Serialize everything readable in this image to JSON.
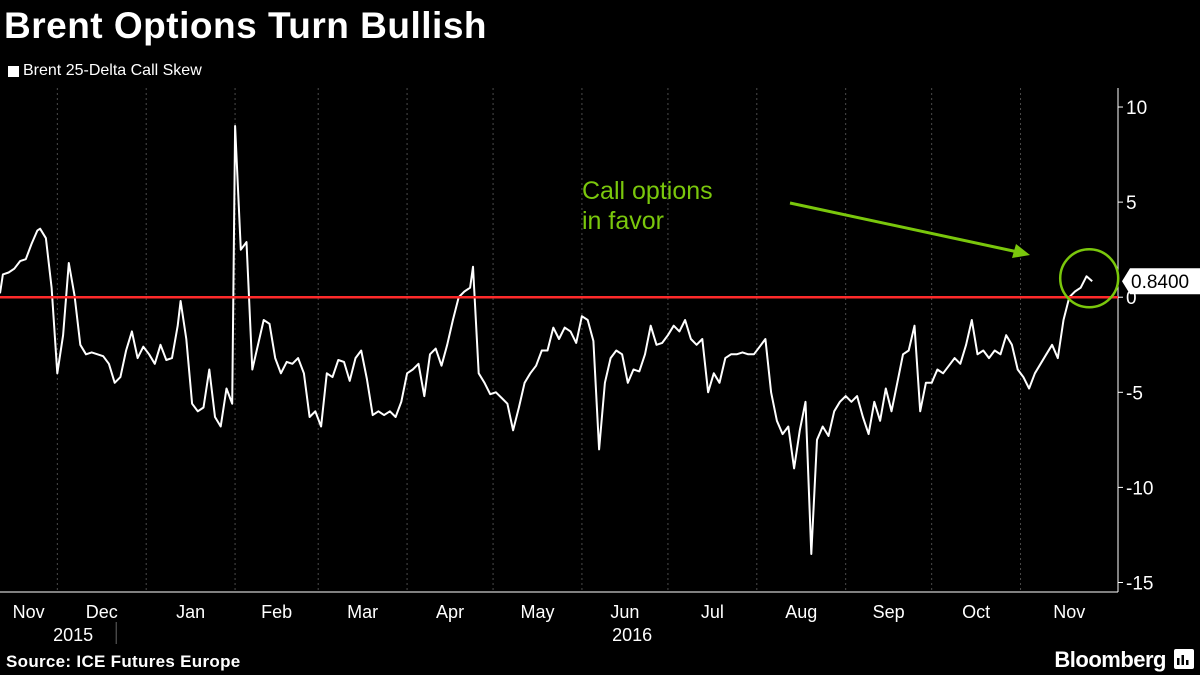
{
  "title": "Brent Options Turn Bullish",
  "legend": {
    "label": "Brent 25-Delta Call Skew"
  },
  "source": "Source: ICE Futures Europe",
  "brand": "Bloomberg",
  "annotation": {
    "line1": "Call options",
    "line2": "in favor"
  },
  "colors": {
    "background": "#000000",
    "series": "#ffffff",
    "zero_line": "#ff2a2a",
    "annotation": "#7ac70c",
    "grid": "#4a4a4a"
  },
  "chart_data": {
    "type": "line",
    "title": "Brent Options Turn Bullish",
    "xlabel": "",
    "ylabel": "",
    "ylim": [
      -15.5,
      11
    ],
    "yticks": [
      10,
      5,
      0,
      -5,
      -10,
      -15
    ],
    "ytick_labels": [
      "10",
      "5",
      "0",
      "-5",
      "-10",
      "-15"
    ],
    "last_value_label": "0.8400",
    "reference_line": 0,
    "x_range": [
      "2015-11-11",
      "2016-12-05"
    ],
    "months": [
      {
        "label": "Nov",
        "start": "2015-11-01",
        "year": "2015"
      },
      {
        "label": "Dec",
        "start": "2015-12-01",
        "year": "2015"
      },
      {
        "label": "Jan",
        "start": "2016-01-01",
        "year": "2016"
      },
      {
        "label": "Feb",
        "start": "2016-02-01",
        "year": "2016"
      },
      {
        "label": "Mar",
        "start": "2016-03-01",
        "year": "2016"
      },
      {
        "label": "Apr",
        "start": "2016-04-01",
        "year": "2016"
      },
      {
        "label": "May",
        "start": "2016-05-01",
        "year": "2016"
      },
      {
        "label": "Jun",
        "start": "2016-06-01",
        "year": "2016"
      },
      {
        "label": "Jul",
        "start": "2016-07-01",
        "year": "2016"
      },
      {
        "label": "Aug",
        "start": "2016-08-01",
        "year": "2016"
      },
      {
        "label": "Sep",
        "start": "2016-09-01",
        "year": "2016"
      },
      {
        "label": "Oct",
        "start": "2016-10-01",
        "year": "2016"
      },
      {
        "label": "Nov",
        "start": "2016-11-01",
        "year": "2016"
      }
    ],
    "month_labels": [
      "Nov",
      "Dec",
      "Jan",
      "Feb",
      "Mar",
      "Apr",
      "May",
      "Jun",
      "Jul",
      "Aug",
      "Sep",
      "Oct",
      "Nov"
    ],
    "year_labels": [
      "2015",
      "2016"
    ],
    "series": [
      {
        "name": "Brent 25-Delta Call Skew",
        "points": [
          [
            "2015-11-11",
            0.2
          ],
          [
            "2015-11-12",
            1.2
          ],
          [
            "2015-11-14",
            1.3
          ],
          [
            "2015-11-16",
            1.5
          ],
          [
            "2015-11-18",
            1.9
          ],
          [
            "2015-11-20",
            2.0
          ],
          [
            "2015-11-22",
            2.8
          ],
          [
            "2015-11-24",
            3.5
          ],
          [
            "2015-11-25",
            3.6
          ],
          [
            "2015-11-27",
            3.1
          ],
          [
            "2015-11-29",
            0.5
          ],
          [
            "2015-12-01",
            -4.0
          ],
          [
            "2015-12-03",
            -2.0
          ],
          [
            "2015-12-05",
            1.8
          ],
          [
            "2015-12-07",
            0.1
          ],
          [
            "2015-12-09",
            -2.5
          ],
          [
            "2015-12-11",
            -3.0
          ],
          [
            "2015-12-13",
            -2.9
          ],
          [
            "2015-12-15",
            -3.0
          ],
          [
            "2015-12-17",
            -3.1
          ],
          [
            "2015-12-19",
            -3.5
          ],
          [
            "2015-12-21",
            -4.5
          ],
          [
            "2015-12-23",
            -4.2
          ],
          [
            "2015-12-25",
            -2.8
          ],
          [
            "2015-12-27",
            -1.8
          ],
          [
            "2015-12-29",
            -3.2
          ],
          [
            "2015-12-31",
            -2.6
          ],
          [
            "2016-01-02",
            -3.0
          ],
          [
            "2016-01-04",
            -3.5
          ],
          [
            "2016-01-06",
            -2.5
          ],
          [
            "2016-01-08",
            -3.3
          ],
          [
            "2016-01-10",
            -3.2
          ],
          [
            "2016-01-12",
            -1.5
          ],
          [
            "2016-01-13",
            -0.2
          ],
          [
            "2016-01-15",
            -2.2
          ],
          [
            "2016-01-17",
            -5.6
          ],
          [
            "2016-01-19",
            -6.0
          ],
          [
            "2016-01-21",
            -5.8
          ],
          [
            "2016-01-23",
            -3.8
          ],
          [
            "2016-01-25",
            -6.3
          ],
          [
            "2016-01-27",
            -6.8
          ],
          [
            "2016-01-29",
            -4.8
          ],
          [
            "2016-01-31",
            -5.6
          ],
          [
            "2016-02-01",
            9.0
          ],
          [
            "2016-02-03",
            2.5
          ],
          [
            "2016-02-05",
            2.9
          ],
          [
            "2016-02-07",
            -3.8
          ],
          [
            "2016-02-09",
            -2.5
          ],
          [
            "2016-02-11",
            -1.2
          ],
          [
            "2016-02-13",
            -1.4
          ],
          [
            "2016-02-15",
            -3.2
          ],
          [
            "2016-02-17",
            -4.0
          ],
          [
            "2016-02-19",
            -3.4
          ],
          [
            "2016-02-21",
            -3.5
          ],
          [
            "2016-02-23",
            -3.2
          ],
          [
            "2016-02-25",
            -4.0
          ],
          [
            "2016-02-27",
            -6.3
          ],
          [
            "2016-02-29",
            -6.0
          ],
          [
            "2016-03-02",
            -6.8
          ],
          [
            "2016-03-04",
            -4.0
          ],
          [
            "2016-03-06",
            -4.2
          ],
          [
            "2016-03-08",
            -3.3
          ],
          [
            "2016-03-10",
            -3.4
          ],
          [
            "2016-03-12",
            -4.4
          ],
          [
            "2016-03-14",
            -3.2
          ],
          [
            "2016-03-16",
            -2.8
          ],
          [
            "2016-03-18",
            -4.3
          ],
          [
            "2016-03-20",
            -6.2
          ],
          [
            "2016-03-22",
            -6.0
          ],
          [
            "2016-03-24",
            -6.2
          ],
          [
            "2016-03-26",
            -6.0
          ],
          [
            "2016-03-28",
            -6.3
          ],
          [
            "2016-03-30",
            -5.5
          ],
          [
            "2016-04-01",
            -4.0
          ],
          [
            "2016-04-03",
            -3.8
          ],
          [
            "2016-04-05",
            -3.5
          ],
          [
            "2016-04-07",
            -5.2
          ],
          [
            "2016-04-09",
            -3.0
          ],
          [
            "2016-04-11",
            -2.7
          ],
          [
            "2016-04-13",
            -3.6
          ],
          [
            "2016-04-15",
            -2.5
          ],
          [
            "2016-04-17",
            -1.2
          ],
          [
            "2016-04-19",
            0.0
          ],
          [
            "2016-04-21",
            0.3
          ],
          [
            "2016-04-23",
            0.5
          ],
          [
            "2016-04-24",
            1.6
          ],
          [
            "2016-04-26",
            -4.0
          ],
          [
            "2016-04-28",
            -4.5
          ],
          [
            "2016-04-30",
            -5.1
          ],
          [
            "2016-05-02",
            -5.0
          ],
          [
            "2016-05-04",
            -5.3
          ],
          [
            "2016-05-06",
            -5.6
          ],
          [
            "2016-05-08",
            -7.0
          ],
          [
            "2016-05-10",
            -5.8
          ],
          [
            "2016-05-12",
            -4.5
          ],
          [
            "2016-05-14",
            -4.0
          ],
          [
            "2016-05-16",
            -3.6
          ],
          [
            "2016-05-18",
            -2.8
          ],
          [
            "2016-05-20",
            -2.8
          ],
          [
            "2016-05-22",
            -1.6
          ],
          [
            "2016-05-24",
            -2.2
          ],
          [
            "2016-05-26",
            -1.6
          ],
          [
            "2016-05-28",
            -1.8
          ],
          [
            "2016-05-30",
            -2.4
          ],
          [
            "2016-06-01",
            -1.0
          ],
          [
            "2016-06-03",
            -1.2
          ],
          [
            "2016-06-05",
            -2.3
          ],
          [
            "2016-06-07",
            -8.0
          ],
          [
            "2016-06-09",
            -4.5
          ],
          [
            "2016-06-11",
            -3.2
          ],
          [
            "2016-06-13",
            -2.8
          ],
          [
            "2016-06-15",
            -3.0
          ],
          [
            "2016-06-17",
            -4.5
          ],
          [
            "2016-06-19",
            -3.8
          ],
          [
            "2016-06-21",
            -3.9
          ],
          [
            "2016-06-23",
            -3.0
          ],
          [
            "2016-06-25",
            -1.5
          ],
          [
            "2016-06-27",
            -2.5
          ],
          [
            "2016-06-29",
            -2.4
          ],
          [
            "2016-07-01",
            -2.0
          ],
          [
            "2016-07-03",
            -1.5
          ],
          [
            "2016-07-05",
            -1.8
          ],
          [
            "2016-07-07",
            -1.2
          ],
          [
            "2016-07-09",
            -2.2
          ],
          [
            "2016-07-11",
            -2.5
          ],
          [
            "2016-07-13",
            -2.2
          ],
          [
            "2016-07-15",
            -5.0
          ],
          [
            "2016-07-17",
            -4.0
          ],
          [
            "2016-07-19",
            -4.5
          ],
          [
            "2016-07-21",
            -3.2
          ],
          [
            "2016-07-23",
            -3.0
          ],
          [
            "2016-07-25",
            -3.0
          ],
          [
            "2016-07-27",
            -2.9
          ],
          [
            "2016-07-29",
            -3.0
          ],
          [
            "2016-07-31",
            -3.0
          ],
          [
            "2016-08-02",
            -2.6
          ],
          [
            "2016-08-04",
            -2.2
          ],
          [
            "2016-08-06",
            -5.0
          ],
          [
            "2016-08-08",
            -6.5
          ],
          [
            "2016-08-10",
            -7.2
          ],
          [
            "2016-08-12",
            -6.8
          ],
          [
            "2016-08-14",
            -9.0
          ],
          [
            "2016-08-16",
            -7.0
          ],
          [
            "2016-08-18",
            -5.5
          ],
          [
            "2016-08-20",
            -13.5
          ],
          [
            "2016-08-22",
            -7.5
          ],
          [
            "2016-08-24",
            -6.8
          ],
          [
            "2016-08-26",
            -7.3
          ],
          [
            "2016-08-28",
            -6.0
          ],
          [
            "2016-08-30",
            -5.5
          ],
          [
            "2016-09-01",
            -5.2
          ],
          [
            "2016-09-03",
            -5.5
          ],
          [
            "2016-09-05",
            -5.2
          ],
          [
            "2016-09-07",
            -6.3
          ],
          [
            "2016-09-09",
            -7.2
          ],
          [
            "2016-09-11",
            -5.5
          ],
          [
            "2016-09-13",
            -6.5
          ],
          [
            "2016-09-15",
            -4.8
          ],
          [
            "2016-09-17",
            -6.0
          ],
          [
            "2016-09-19",
            -4.5
          ],
          [
            "2016-09-21",
            -3.0
          ],
          [
            "2016-09-23",
            -2.8
          ],
          [
            "2016-09-25",
            -1.5
          ],
          [
            "2016-09-27",
            -6.0
          ],
          [
            "2016-09-29",
            -4.5
          ],
          [
            "2016-10-01",
            -4.5
          ],
          [
            "2016-10-03",
            -3.8
          ],
          [
            "2016-10-05",
            -4.0
          ],
          [
            "2016-10-07",
            -3.6
          ],
          [
            "2016-10-09",
            -3.2
          ],
          [
            "2016-10-11",
            -3.5
          ],
          [
            "2016-10-13",
            -2.5
          ],
          [
            "2016-10-15",
            -1.2
          ],
          [
            "2016-10-17",
            -3.0
          ],
          [
            "2016-10-19",
            -2.8
          ],
          [
            "2016-10-21",
            -3.2
          ],
          [
            "2016-10-23",
            -2.8
          ],
          [
            "2016-10-25",
            -3.0
          ],
          [
            "2016-10-27",
            -2.0
          ],
          [
            "2016-10-29",
            -2.5
          ],
          [
            "2016-10-31",
            -3.8
          ],
          [
            "2016-11-02",
            -4.2
          ],
          [
            "2016-11-04",
            -4.8
          ],
          [
            "2016-11-06",
            -4.0
          ],
          [
            "2016-11-08",
            -3.5
          ],
          [
            "2016-11-10",
            -3.0
          ],
          [
            "2016-11-12",
            -2.5
          ],
          [
            "2016-11-14",
            -3.2
          ],
          [
            "2016-11-16",
            -1.2
          ],
          [
            "2016-11-18",
            0.0
          ],
          [
            "2016-11-20",
            0.3
          ],
          [
            "2016-11-22",
            0.5
          ],
          [
            "2016-11-24",
            1.1
          ],
          [
            "2016-11-26",
            0.84
          ]
        ]
      }
    ]
  }
}
